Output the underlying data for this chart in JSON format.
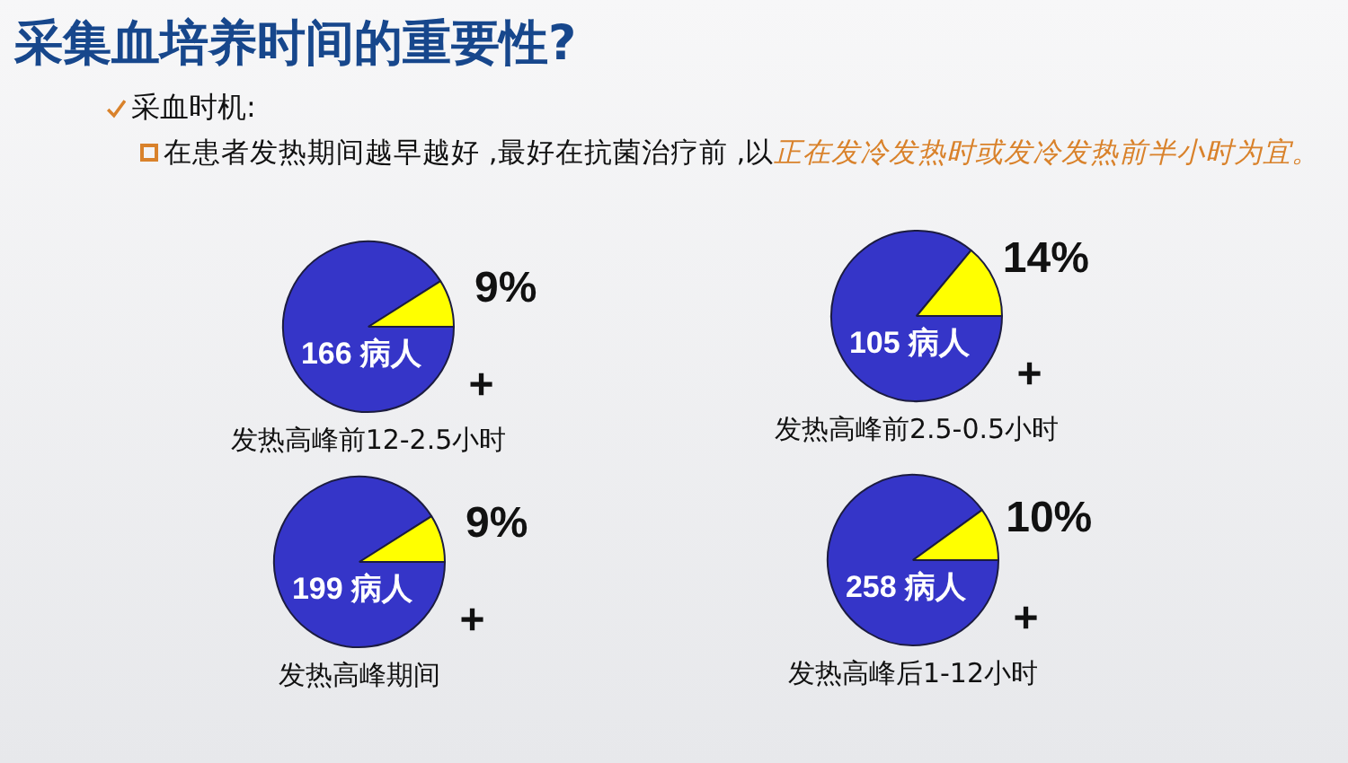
{
  "chart_data": [
    {
      "type": "other",
      "title": "采集血培养时间的重要性?",
      "annotations": [
        "采血时机:",
        "在患者发热期间越早越好 ,最好在抗菌治疗前 ,以",
        "正在发冷发热时或发冷发热前半小时为宜。"
      ]
    },
    {
      "type": "pie",
      "title": "发热高峰前12-2.5小时",
      "categories": [
        null,
        "+"
      ],
      "values": [
        91,
        9
      ],
      "colors": [
        "#3535c8",
        "#ffff00"
      ],
      "value_labels": [
        null,
        "9%"
      ],
      "annotations": [
        "166 病人"
      ]
    },
    {
      "type": "pie",
      "title": "发热高峰前2.5-0.5小时",
      "categories": [
        null,
        "+"
      ],
      "values": [
        86,
        14
      ],
      "colors": [
        "#3535c8",
        "#ffff00"
      ],
      "value_labels": [
        null,
        "14%"
      ],
      "annotations": [
        "105 病人"
      ]
    },
    {
      "type": "pie",
      "title": "发热高峰期间",
      "categories": [
        null,
        "+"
      ],
      "values": [
        91,
        9
      ],
      "colors": [
        "#3535c8",
        "#ffff00"
      ],
      "value_labels": [
        null,
        "9%"
      ],
      "annotations": [
        "199 病人"
      ]
    },
    {
      "type": "pie",
      "title": "发热高峰后1-12小时",
      "categories": [
        null,
        "+"
      ],
      "values": [
        90,
        10
      ],
      "colors": [
        "#3535c8",
        "#ffff00"
      ],
      "value_labels": [
        null,
        "10%"
      ],
      "annotations": [
        "258 病人"
      ]
    }
  ]
}
